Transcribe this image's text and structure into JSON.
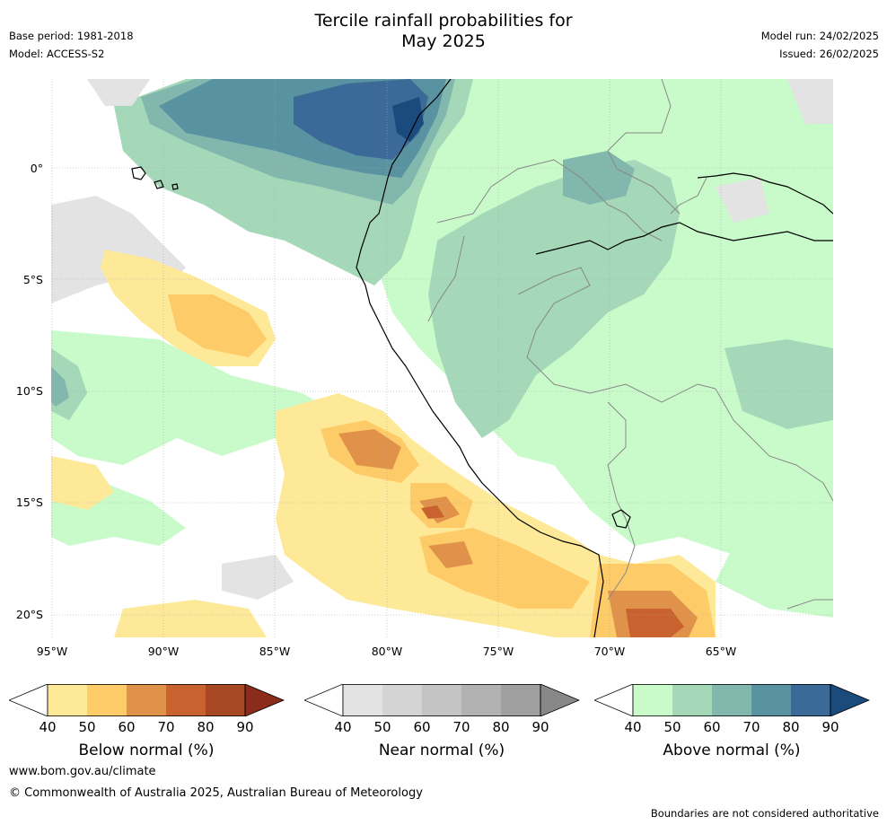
{
  "header": {
    "title_line1": "Tercile rainfall probabilities for",
    "title_line2": "May 2025",
    "base_period": "Base period: 1981-2018",
    "model": "Model: ACCESS-S2",
    "model_run": "Model run: 24/02/2025",
    "issued": "Issued: 26/02/2025"
  },
  "map": {
    "lat_labels": [
      "0°",
      "5°S",
      "10°S",
      "15°S",
      "20°S"
    ],
    "lon_labels": [
      "95°W",
      "90°W",
      "85°W",
      "80°W",
      "75°W",
      "70°W",
      "65°W"
    ]
  },
  "colorbars": [
    {
      "label": "Below normal (%)",
      "ticks": [
        "40",
        "50",
        "60",
        "70",
        "80",
        "90"
      ],
      "colors": [
        "#fee999",
        "#fdcb67",
        "#e0924a",
        "#c9622f",
        "#a84724",
        "#8a2b1c"
      ]
    },
    {
      "label": "Near normal (%)",
      "ticks": [
        "40",
        "50",
        "60",
        "70",
        "80",
        "90"
      ],
      "colors": [
        "#e3e3e3",
        "#d4d4d4",
        "#c4c4c4",
        "#b2b2b2",
        "#a0a0a0",
        "#888888"
      ]
    },
    {
      "label": "Above normal (%)",
      "ticks": [
        "40",
        "50",
        "60",
        "70",
        "80",
        "90"
      ],
      "colors": [
        "#c9fbca",
        "#a4d8b8",
        "#82b7ae",
        "#5992a0",
        "#3b6998",
        "#1b4a7d"
      ]
    }
  ],
  "footer": {
    "website": "www.bom.gov.au/climate",
    "copyright": "© Commonwealth of Australia 2025, Australian Bureau of Meteorology",
    "disclaimer": "Boundaries are not considered authoritative"
  }
}
